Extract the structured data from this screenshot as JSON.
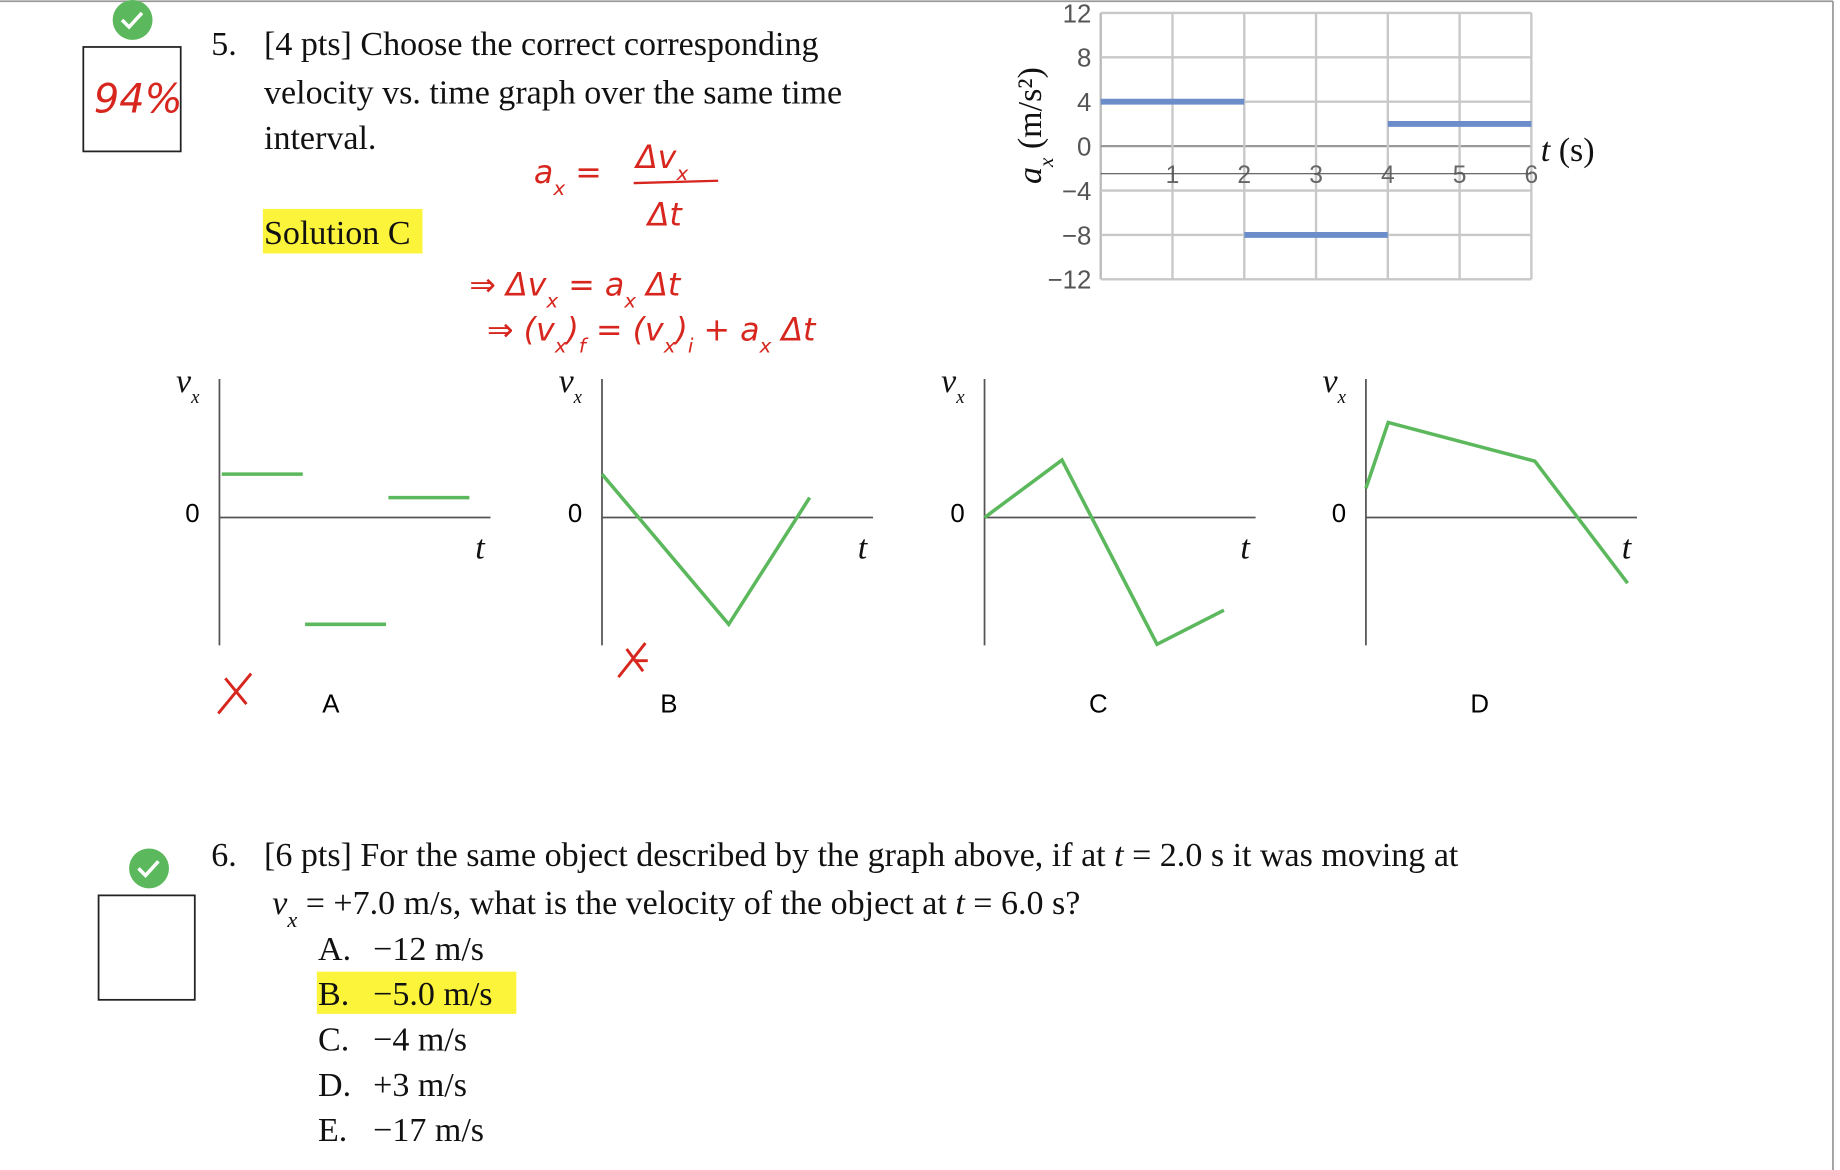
{
  "question5": {
    "number": "5.",
    "lines": [
      "[4 pts] Choose the correct corresponding",
      "velocity vs. time graph over the same time",
      "interval."
    ],
    "solution": "Solution C",
    "score": "94%"
  },
  "accel_graph": {
    "type": "segments",
    "y_label": [
      "a",
      "x",
      " (m/s²)"
    ],
    "x_label": [
      "t",
      " (s)"
    ],
    "xlim": [
      0,
      6
    ],
    "ylim": [
      -12,
      12
    ],
    "xticks": [
      1,
      2,
      3,
      4,
      5,
      6
    ],
    "yticks": [
      12,
      8,
      4,
      0,
      {
        "value": -4,
        "label": "−4"
      },
      {
        "value": -8,
        "label": "−8"
      },
      {
        "value": -12,
        "label": "−12"
      }
    ],
    "grid": true,
    "color": "#6b8ecb",
    "segments": [
      {
        "x": [
          0,
          2
        ],
        "values": [
          4,
          4
        ]
      },
      {
        "x": [
          2,
          4
        ],
        "values": [
          -8,
          -8
        ]
      },
      {
        "x": [
          4,
          6
        ],
        "values": [
          2,
          2
        ]
      }
    ]
  },
  "annotations": {
    "eq1": [
      "a",
      "x",
      " = ",
      "Δv",
      "x",
      "Δt"
    ],
    "eq2": [
      "⇒ Δv",
      "x",
      " = a",
      "x",
      " Δt"
    ],
    "eq3": [
      "⇒ (v",
      "x",
      ")",
      "f",
      " = (v",
      "x",
      ")",
      "i",
      " + a",
      "x",
      " Δt"
    ]
  },
  "choice_graphs": [
    {
      "y_label": [
        "v",
        "x"
      ],
      "zero": "0",
      "x_label": "t",
      "letter": "A"
    },
    {
      "y_label": [
        "v",
        "x"
      ],
      "zero": "0",
      "x_label": "t",
      "letter": "B"
    },
    {
      "y_label": [
        "v",
        "x"
      ],
      "zero": "0",
      "x_label": "t",
      "letter": "C"
    },
    {
      "y_label": [
        "v",
        "x"
      ],
      "zero": "0",
      "x_label": "t",
      "letter": "D"
    }
  ],
  "question6": {
    "number": "6.",
    "line1": [
      "[6 pts] For the same object described by the graph above, if at ",
      "t",
      " = 2.0 s it was moving at"
    ],
    "line2": [
      "v",
      "x",
      " = +7.0 m/s, what is the velocity of the object at ",
      "t",
      " = 6.0 s?"
    ],
    "choices": [
      {
        "letter": "A.",
        "text": "−12 m/s"
      },
      {
        "letter": "B.",
        "text": "−5.0 m/s"
      },
      {
        "letter": "C.",
        "text": "−4 m/s"
      },
      {
        "letter": "D.",
        "text": "+3 m/s"
      },
      {
        "letter": "E.",
        "text": "−17 m/s"
      }
    ]
  }
}
